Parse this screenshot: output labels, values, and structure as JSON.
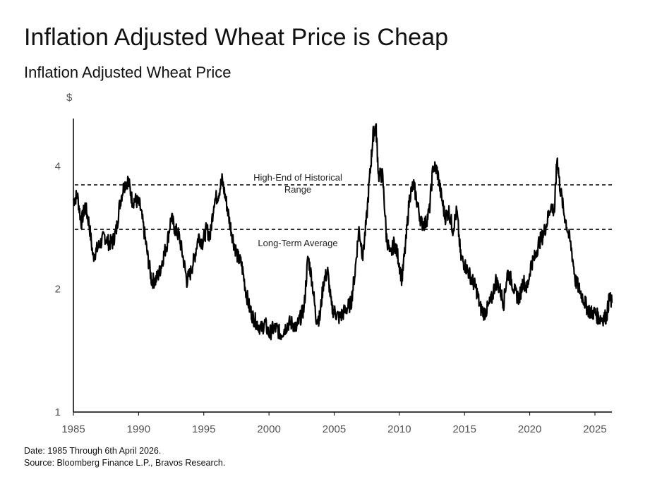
{
  "header": {
    "title": "Inflation Adjusted Wheat Price is Cheap",
    "subtitle": "Inflation Adjusted Wheat Price"
  },
  "footer": {
    "date_note": "Date: 1985 Through 6th April 2026.",
    "source_note": "Source: Bloomberg Finance L.P., Bravos Research."
  },
  "colors": {
    "line": "#000000",
    "axis": "#000000",
    "tick_text": "#555555"
  },
  "chart_data": {
    "type": "line",
    "title": "Inflation Adjusted Wheat Price",
    "ylabel": "$",
    "xlabel": "",
    "y_scale": "log",
    "ylim": [
      1,
      5.4
    ],
    "xlim": [
      1985,
      2026.3
    ],
    "x_ticks": [
      "1985",
      "1990",
      "1995",
      "2000",
      "2005",
      "2010",
      "2015",
      "2020",
      "2025"
    ],
    "y_ticks": [
      "1",
      "2",
      "4"
    ],
    "grid": false,
    "reference_lines": [
      {
        "label_line1": "High-End of Historical",
        "label_line2": "Range",
        "value": 3.6
      },
      {
        "label_line1": "Long-Term Average",
        "label_line2": "",
        "value": 2.8
      }
    ],
    "series": [
      {
        "x": [
          1985.0,
          1985.3,
          1985.6,
          1985.9,
          1986.2,
          1986.5,
          1986.8,
          1987.1,
          1987.4,
          1987.7,
          1988.0,
          1988.3,
          1988.6,
          1988.9,
          1989.2,
          1989.5,
          1989.8,
          1990.1,
          1990.4,
          1990.7,
          1991.0,
          1991.3,
          1991.6,
          1991.9,
          1992.2,
          1992.5,
          1992.8,
          1993.1,
          1993.4,
          1993.7,
          1994.0,
          1994.3,
          1994.6,
          1994.9,
          1995.2,
          1995.5,
          1995.8,
          1996.1,
          1996.4,
          1996.7,
          1997.0,
          1997.3,
          1997.6,
          1997.9,
          1998.2,
          1998.5,
          1998.8,
          1999.1,
          1999.4,
          1999.7,
          2000.0,
          2000.3,
          2000.6,
          2000.9,
          2001.2,
          2001.5,
          2001.8,
          2002.1,
          2002.4,
          2002.7,
          2003.0,
          2003.3,
          2003.6,
          2003.9,
          2004.2,
          2004.5,
          2004.8,
          2005.1,
          2005.4,
          2005.7,
          2006.0,
          2006.3,
          2006.6,
          2006.9,
          2007.2,
          2007.5,
          2007.8,
          2008.0,
          2008.2,
          2008.4,
          2008.7,
          2009.0,
          2009.3,
          2009.6,
          2009.9,
          2010.2,
          2010.5,
          2010.8,
          2011.1,
          2011.4,
          2011.7,
          2012.0,
          2012.3,
          2012.6,
          2012.9,
          2013.2,
          2013.5,
          2013.8,
          2014.1,
          2014.4,
          2014.7,
          2015.0,
          2015.3,
          2015.6,
          2015.9,
          2016.2,
          2016.5,
          2016.8,
          2017.1,
          2017.4,
          2017.7,
          2018.0,
          2018.3,
          2018.6,
          2018.9,
          2019.2,
          2019.5,
          2019.8,
          2020.1,
          2020.4,
          2020.7,
          2021.0,
          2021.3,
          2021.6,
          2021.9,
          2022.1,
          2022.3,
          2022.6,
          2022.9,
          2023.2,
          2023.5,
          2023.8,
          2024.1,
          2024.4,
          2024.7,
          2025.0,
          2025.3,
          2025.6,
          2025.9,
          2026.1,
          2026.3
        ],
        "values": [
          3.3,
          3.4,
          2.9,
          3.2,
          2.9,
          2.4,
          2.5,
          2.6,
          2.7,
          2.6,
          2.6,
          2.8,
          3.3,
          3.6,
          3.7,
          3.3,
          3.3,
          3.2,
          2.8,
          2.4,
          2.1,
          2.1,
          2.2,
          2.4,
          2.6,
          3.0,
          2.8,
          2.7,
          2.4,
          2.1,
          2.2,
          2.4,
          2.7,
          2.6,
          2.8,
          2.7,
          3.3,
          3.4,
          3.7,
          3.3,
          2.9,
          2.6,
          2.4,
          2.3,
          2.0,
          1.8,
          1.7,
          1.65,
          1.6,
          1.65,
          1.55,
          1.6,
          1.6,
          1.55,
          1.6,
          1.65,
          1.65,
          1.6,
          1.7,
          1.8,
          2.4,
          2.1,
          1.7,
          1.7,
          2.1,
          2.2,
          1.8,
          1.75,
          1.7,
          1.75,
          1.8,
          1.85,
          2.2,
          2.8,
          2.4,
          3.0,
          4.0,
          4.8,
          5.0,
          3.8,
          3.8,
          2.7,
          2.4,
          2.6,
          2.4,
          2.1,
          2.6,
          3.4,
          3.6,
          3.2,
          2.9,
          2.9,
          3.1,
          4.0,
          3.9,
          3.4,
          3.0,
          3.1,
          2.8,
          3.1,
          2.4,
          2.3,
          2.2,
          2.1,
          2.0,
          1.8,
          1.75,
          1.8,
          1.9,
          2.1,
          2.0,
          1.85,
          2.2,
          2.1,
          1.95,
          1.9,
          2.1,
          2.0,
          2.3,
          2.4,
          2.6,
          2.7,
          2.9,
          3.2,
          3.1,
          4.2,
          3.6,
          3.1,
          2.8,
          2.5,
          2.1,
          2.0,
          1.9,
          1.8,
          1.75,
          1.75,
          1.7,
          1.7,
          1.72,
          1.9,
          1.85
        ]
      }
    ]
  }
}
